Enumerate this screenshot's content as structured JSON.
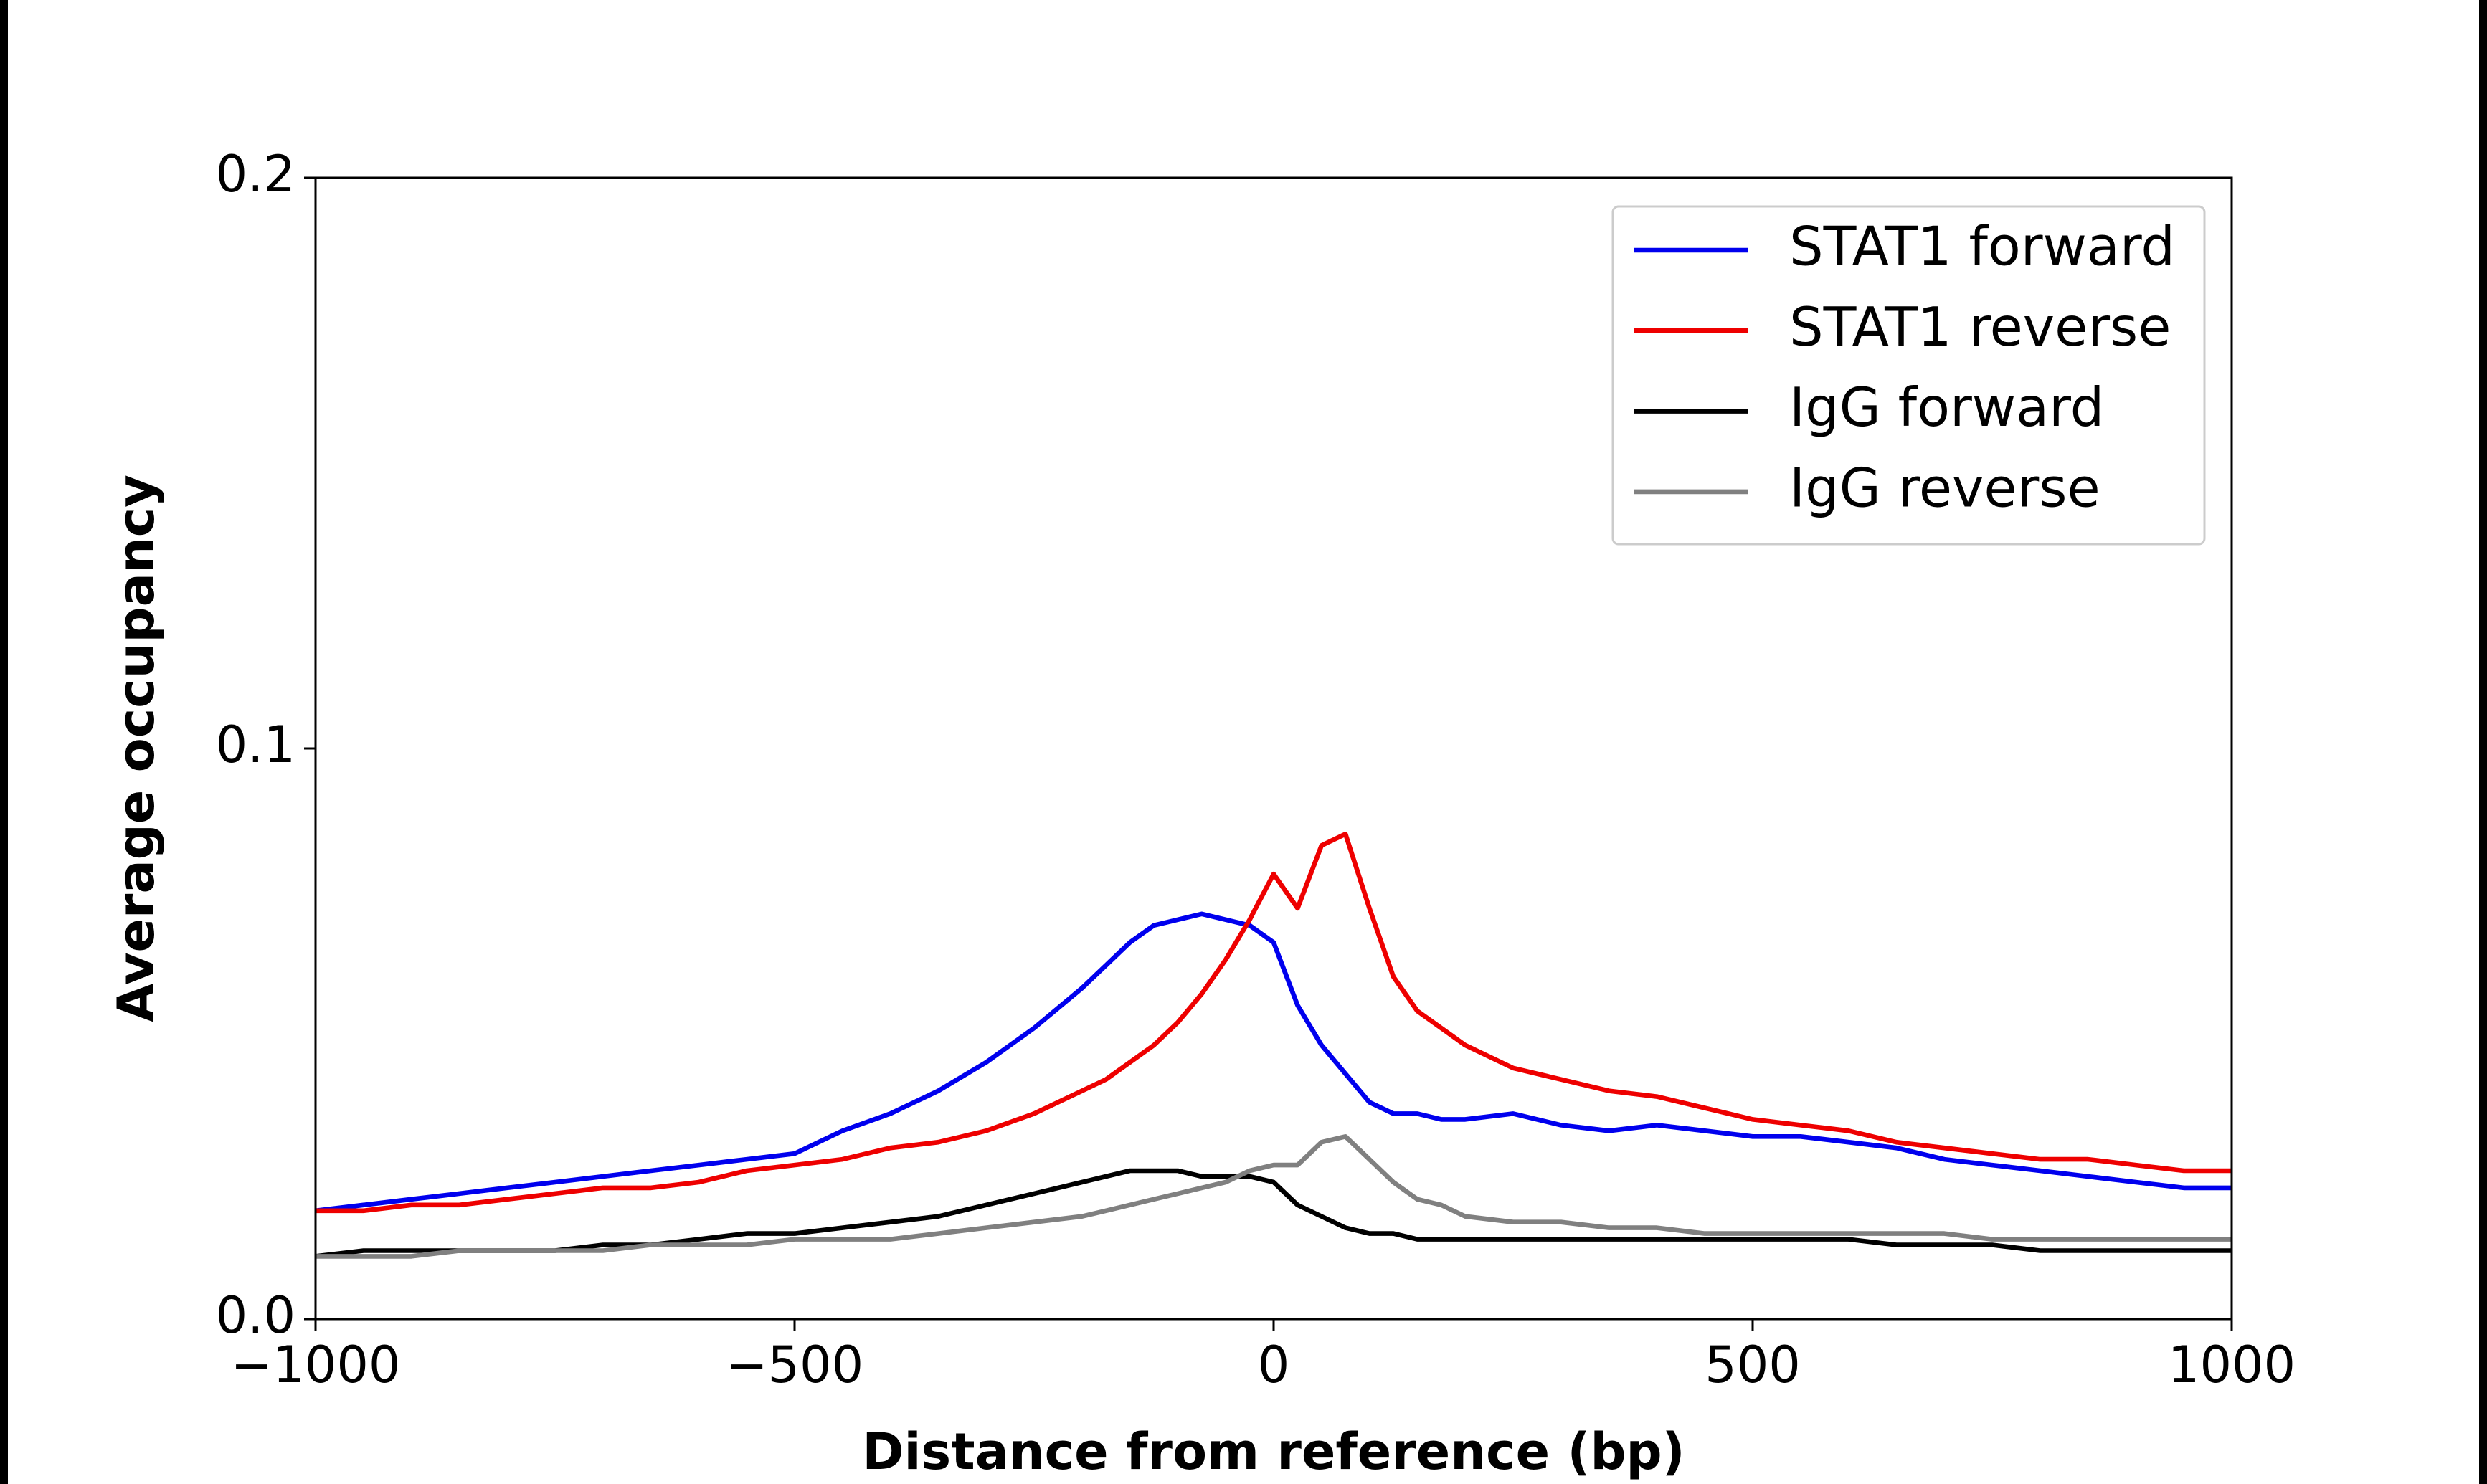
{
  "chart_data": {
    "type": "line",
    "xlabel": "Distance from reference (bp)",
    "ylabel": "Average occupancy",
    "xlim": [
      -1000,
      1000
    ],
    "ylim": [
      0,
      0.2
    ],
    "xticks": [
      {
        "value": -1000,
        "label": "−1000"
      },
      {
        "value": -500,
        "label": "−500"
      },
      0,
      500,
      1000
    ],
    "yticks": [
      {
        "value": 0,
        "label": "0.0"
      },
      0.1,
      0.2
    ],
    "legend": "upper right",
    "x": [
      -1000,
      -950,
      -900,
      -850,
      -800,
      -750,
      -700,
      -650,
      -600,
      -550,
      -500,
      -450,
      -400,
      -350,
      -300,
      -250,
      -200,
      -175,
      -150,
      -125,
      -100,
      -75,
      -50,
      -25,
      0,
      25,
      50,
      75,
      100,
      125,
      150,
      175,
      200,
      250,
      300,
      350,
      400,
      450,
      500,
      550,
      600,
      650,
      700,
      750,
      800,
      850,
      900,
      950,
      1000
    ],
    "series": [
      {
        "name": "STAT1 forward",
        "color": "#0000ee",
        "values": [
          0.019,
          0.02,
          0.021,
          0.022,
          0.023,
          0.024,
          0.025,
          0.026,
          0.027,
          0.028,
          0.029,
          0.033,
          0.036,
          0.04,
          0.045,
          0.051,
          0.058,
          0.062,
          0.066,
          0.069,
          0.07,
          0.071,
          0.07,
          0.069,
          0.066,
          0.055,
          0.048,
          0.043,
          0.038,
          0.036,
          0.036,
          0.035,
          0.035,
          0.036,
          0.034,
          0.033,
          0.034,
          0.033,
          0.032,
          0.032,
          0.031,
          0.03,
          0.028,
          0.027,
          0.026,
          0.025,
          0.024,
          0.023,
          0.023
        ]
      },
      {
        "name": "STAT1 reverse",
        "color": "#ee0000",
        "values": [
          0.019,
          0.019,
          0.02,
          0.02,
          0.021,
          0.022,
          0.023,
          0.023,
          0.024,
          0.026,
          0.027,
          0.028,
          0.03,
          0.031,
          0.033,
          0.036,
          0.04,
          0.042,
          0.045,
          0.048,
          0.052,
          0.057,
          0.063,
          0.07,
          0.078,
          0.072,
          0.083,
          0.085,
          0.072,
          0.06,
          0.054,
          0.051,
          0.048,
          0.044,
          0.042,
          0.04,
          0.039,
          0.037,
          0.035,
          0.034,
          0.033,
          0.031,
          0.03,
          0.029,
          0.028,
          0.028,
          0.027,
          0.026,
          0.026
        ]
      },
      {
        "name": "IgG forward",
        "color": "#000000",
        "values": [
          0.011,
          0.012,
          0.012,
          0.012,
          0.012,
          0.012,
          0.013,
          0.013,
          0.014,
          0.015,
          0.015,
          0.016,
          0.017,
          0.018,
          0.02,
          0.022,
          0.024,
          0.025,
          0.026,
          0.026,
          0.026,
          0.025,
          0.025,
          0.025,
          0.024,
          0.02,
          0.018,
          0.016,
          0.015,
          0.015,
          0.014,
          0.014,
          0.014,
          0.014,
          0.014,
          0.014,
          0.014,
          0.014,
          0.014,
          0.014,
          0.014,
          0.013,
          0.013,
          0.013,
          0.012,
          0.012,
          0.012,
          0.012,
          0.012
        ]
      },
      {
        "name": "IgG reverse",
        "color": "#808080",
        "values": [
          0.011,
          0.011,
          0.011,
          0.012,
          0.012,
          0.012,
          0.012,
          0.013,
          0.013,
          0.013,
          0.014,
          0.014,
          0.014,
          0.015,
          0.016,
          0.017,
          0.018,
          0.019,
          0.02,
          0.021,
          0.022,
          0.023,
          0.024,
          0.026,
          0.027,
          0.027,
          0.031,
          0.032,
          0.028,
          0.024,
          0.021,
          0.02,
          0.018,
          0.017,
          0.017,
          0.016,
          0.016,
          0.015,
          0.015,
          0.015,
          0.015,
          0.015,
          0.015,
          0.014,
          0.014,
          0.014,
          0.014,
          0.014,
          0.014
        ]
      }
    ]
  }
}
